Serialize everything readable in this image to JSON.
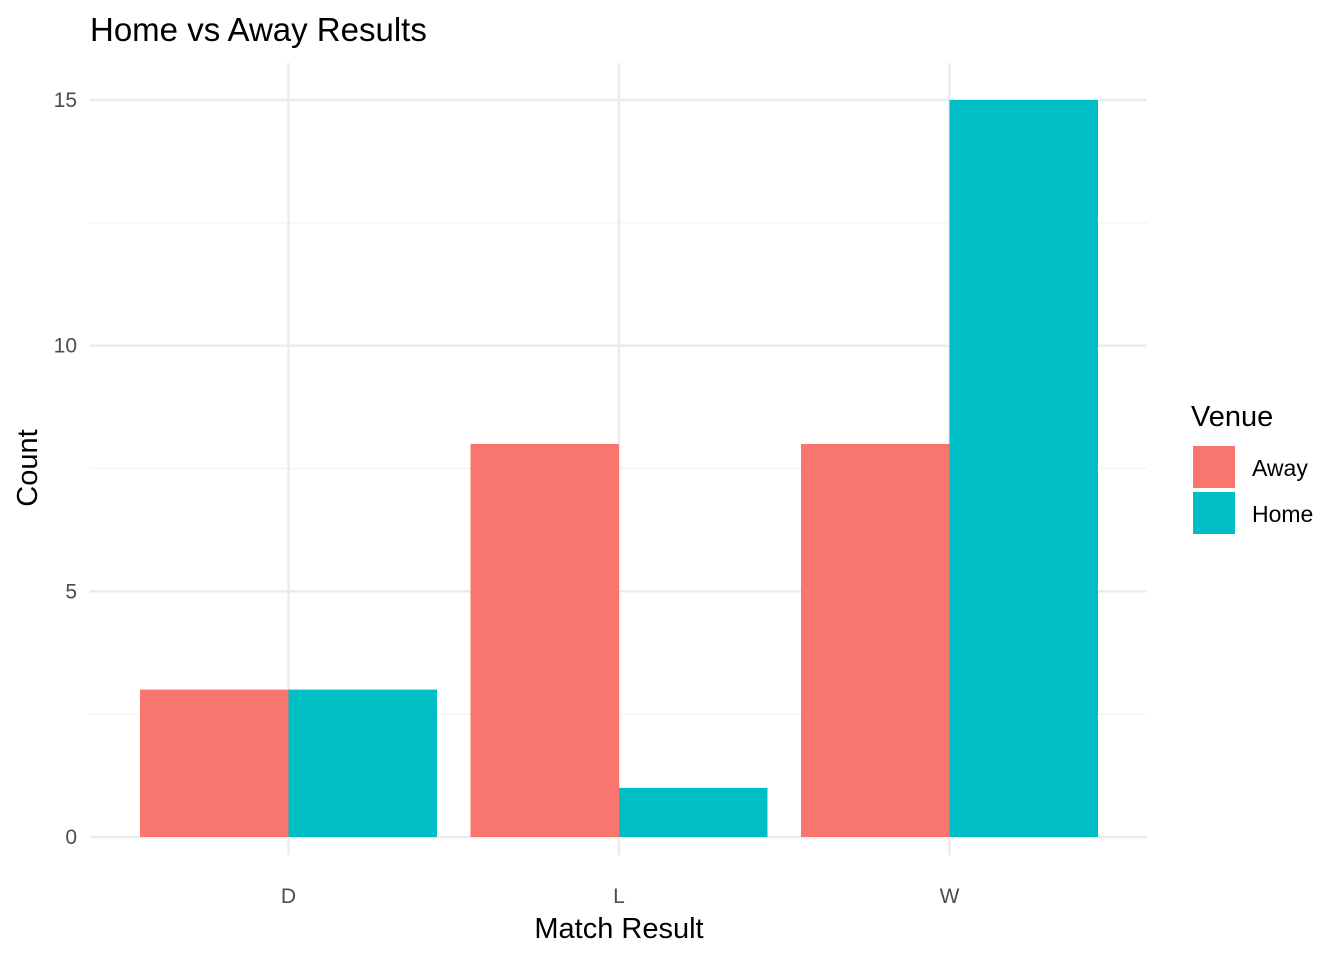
{
  "chart_data": {
    "type": "bar",
    "title": "Home vs Away Results",
    "xlabel": "Match Result",
    "ylabel": "Count",
    "categories": [
      "D",
      "L",
      "W"
    ],
    "series": [
      {
        "name": "Away",
        "values": [
          3,
          8,
          8
        ],
        "color": "#F8766D"
      },
      {
        "name": "Home",
        "values": [
          3,
          1,
          15
        ],
        "color": "#00BFC4"
      }
    ],
    "ylim": [
      0,
      15.75
    ],
    "yticks": [
      0,
      5,
      10,
      15
    ],
    "ytick_labels": [
      "0",
      "5",
      "10",
      "15"
    ],
    "grid": true,
    "legend": {
      "title": "Venue",
      "position": "right"
    }
  }
}
